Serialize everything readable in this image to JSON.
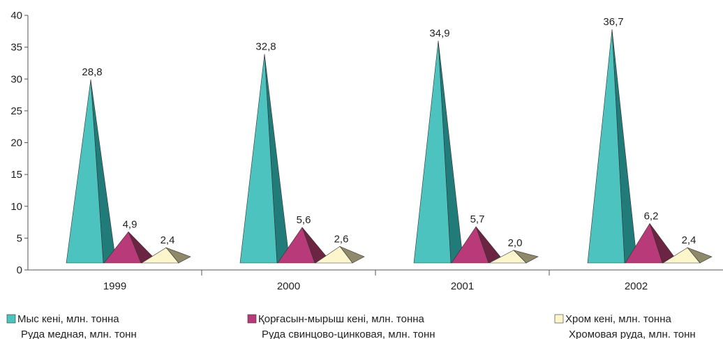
{
  "chart_data": {
    "type": "pyramid3d",
    "categories": [
      "1999",
      "2000",
      "2001",
      "2002"
    ],
    "series": [
      {
        "name": "Мыс кені, млн. тонна",
        "name_ru": "Руда медная, млн. тонн",
        "color": "#4cc3bf",
        "side_color": "#217b78",
        "values": [
          28.8,
          32.8,
          34.9,
          36.7
        ],
        "value_labels": [
          "28,8",
          "32,8",
          "34,9",
          "36,7"
        ]
      },
      {
        "name": "Қорғасын-мырыш кені, млн. тонна",
        "name_ru": "Руда свинцово-цинковая, млн. тонн",
        "color": "#b83a78",
        "side_color": "#6c2443",
        "values": [
          4.9,
          5.6,
          5.7,
          6.2
        ],
        "value_labels": [
          "4,9",
          "5,6",
          "5,7",
          "6,2"
        ]
      },
      {
        "name": "Хром кені, млн. тонна",
        "name_ru": "Хромовая руда, млн. тонн",
        "color": "#fdf6cc",
        "side_color": "#8e896a",
        "values": [
          2.4,
          2.6,
          2.0,
          2.4
        ],
        "value_labels": [
          "2,4",
          "2,6",
          "2,0",
          "2,4"
        ]
      }
    ],
    "ylim": [
      0,
      40
    ],
    "yticks": [
      0,
      5,
      10,
      15,
      20,
      25,
      30,
      35,
      40
    ]
  }
}
